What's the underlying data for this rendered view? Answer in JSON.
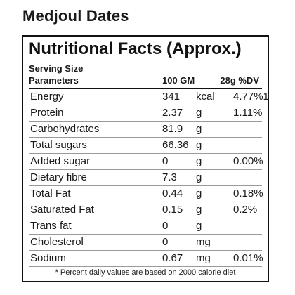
{
  "title": "Medjoul Dates",
  "panel": {
    "heading": "Nutritional Facts (Approx.)",
    "serving_size_label": "Serving Size",
    "columns": {
      "parameter": "Parameters",
      "per_amount": "100 GM",
      "dv": "28g %DV"
    },
    "rows": [
      {
        "name": "Energy",
        "value": "341",
        "unit": "kcal",
        "dv": "4.77%1"
      },
      {
        "name": "Protein",
        "value": "2.37",
        "unit": "g",
        "dv": "1.11%"
      },
      {
        "name": "Carbohydrates",
        "value": "81.9",
        "unit": "g",
        "dv": ""
      },
      {
        "name": "Total sugars",
        "value": "66.36",
        "unit": "g",
        "dv": ""
      },
      {
        "name": "Added sugar",
        "value": "0",
        "unit": "g",
        "dv": "0.00%"
      },
      {
        "name": "Dietary fibre",
        "value": "7.3",
        "unit": "g",
        "dv": ""
      },
      {
        "name": "Total Fat",
        "value": "0.44",
        "unit": "g",
        "dv": "0.18%"
      },
      {
        "name": "Saturated Fat",
        "value": "0.15",
        "unit": "g",
        "dv": "0.2%"
      },
      {
        "name": "Trans fat",
        "value": "0",
        "unit": "g",
        "dv": ""
      },
      {
        "name": "Cholesterol",
        "value": "0",
        "unit": "mg",
        "dv": ""
      },
      {
        "name": "Sodium",
        "value": "0.67",
        "unit": "mg",
        "dv": "0.01%"
      }
    ],
    "footnote": "* Percent daily values are based on 2000 calorie diet"
  }
}
